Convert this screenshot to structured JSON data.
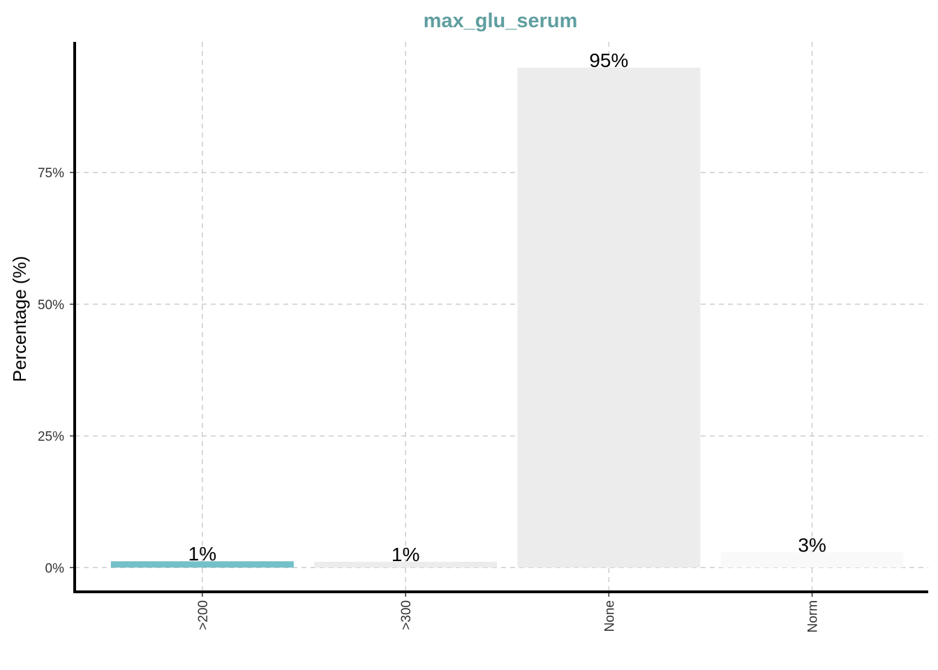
{
  "chart_data": {
    "type": "bar",
    "title": "max_glu_serum",
    "xlabel": "",
    "ylabel": "Percentage (%)",
    "categories": [
      ">200",
      ">300",
      "None",
      "Norm"
    ],
    "values": [
      1.2,
      1.1,
      94.9,
      2.9
    ],
    "data_labels": [
      "1%",
      "1%",
      "95%",
      "3%"
    ],
    "bar_colors": [
      "#74c0c8",
      "#ececec",
      "#ececec",
      "#f9f9f9"
    ],
    "ylim": [
      -4.6,
      99.8
    ],
    "yticks": [
      0,
      25,
      50,
      75
    ],
    "ytick_labels": [
      "0%",
      "25%",
      "50%",
      "75%"
    ],
    "grid": true,
    "legend": "none",
    "title_color": "#5f9ea0"
  }
}
